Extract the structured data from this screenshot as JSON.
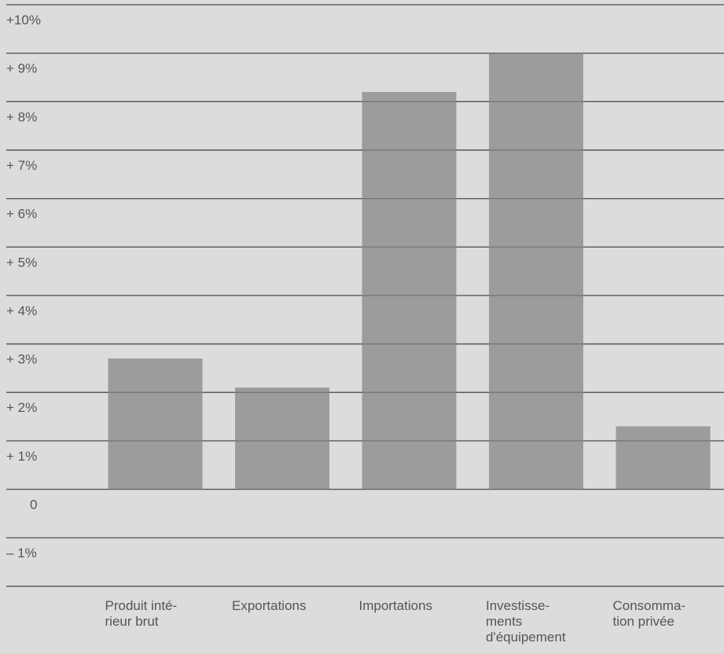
{
  "chart_data": {
    "type": "bar",
    "title": "",
    "xlabel": "",
    "ylabel": "",
    "ylim": [
      -2,
      10
    ],
    "grid": true,
    "bar_color": "#9c9c9c",
    "background_color": "#dcdcdc",
    "grid_color": "#555555",
    "y_ticks": [
      {
        "value": 10,
        "label": "+10%"
      },
      {
        "value": 9,
        "label": "+ 9%"
      },
      {
        "value": 8,
        "label": "+ 8%"
      },
      {
        "value": 7,
        "label": "+ 7%"
      },
      {
        "value": 6,
        "label": "+ 6%"
      },
      {
        "value": 5,
        "label": "+ 5%"
      },
      {
        "value": 4,
        "label": "+ 4%"
      },
      {
        "value": 3,
        "label": "+ 3%"
      },
      {
        "value": 2,
        "label": "+ 2%"
      },
      {
        "value": 1,
        "label": "+ 1%"
      },
      {
        "value": 0,
        "label": "0"
      },
      {
        "value": -1,
        "label": "– 1%"
      },
      {
        "value": -2,
        "label": ""
      }
    ],
    "categories": [
      [
        "Produit inté-",
        "rieur brut"
      ],
      [
        "Exportations"
      ],
      [
        "Importations"
      ],
      [
        "Investisse-",
        "ments",
        "d'équipement"
      ],
      [
        "Consomma-",
        "tion privée"
      ]
    ],
    "values": [
      2.7,
      2.1,
      8.2,
      9.0,
      1.3
    ]
  }
}
